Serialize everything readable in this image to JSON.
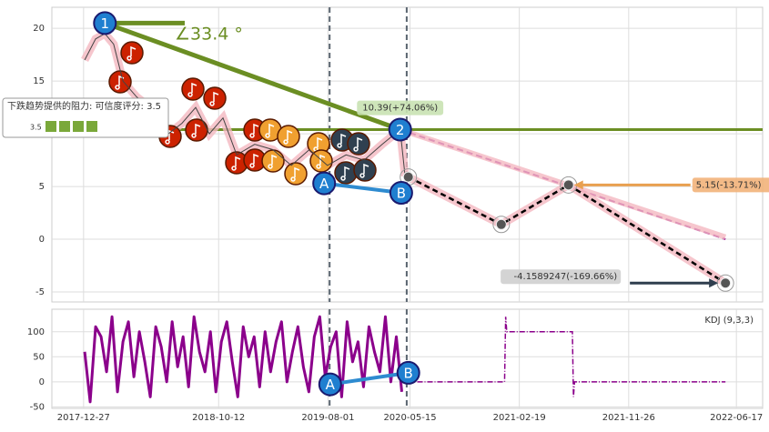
{
  "chart_data": [
    {
      "type": "line",
      "ylim": [
        -5.95,
        22
      ],
      "yticks": [
        -5,
        0,
        5,
        10,
        15,
        20
      ],
      "xlim": [
        0,
        1300
      ],
      "grid": true,
      "series": [
        {
          "color": "#444444",
          "x": [
            60,
            80,
            97,
            113,
            130,
            155,
            180,
            213,
            238,
            263,
            288,
            313,
            338,
            371,
            404,
            438,
            471,
            504,
            538,
            571,
            604,
            637,
            646
          ],
          "values": [
            17,
            19,
            19.5,
            18.5,
            15,
            13.5,
            12.5,
            10,
            11,
            12.5,
            10,
            11.5,
            8,
            9,
            8.5,
            7,
            8.5,
            7,
            8,
            7.5,
            9,
            10.4,
            6
          ]
        },
        {
          "color": "#000000",
          "x": [
            652,
            822,
            945,
            1232
          ],
          "values": [
            5.9,
            1.4,
            5.15,
            -4.1589247
          ]
        }
      ],
      "trend_lines": [
        {
          "color": "#6b8e23",
          "x": [
            97,
            637
          ],
          "values": [
            20.5,
            10.4
          ]
        },
        {
          "color": "#6b8e23",
          "x": [
            97,
            243
          ],
          "values": [
            20.5,
            20.5
          ]
        },
        {
          "color": "#6b8e23",
          "x": [
            0,
            1300
          ],
          "values": [
            10.4,
            10.4
          ]
        },
        {
          "color": "#8b008b",
          "x": [
            637,
            1232
          ],
          "values": [
            10.4,
            0
          ]
        },
        {
          "color": "#f4b8c0",
          "x": [
            637,
            1232
          ],
          "values": [
            10.4,
            0.2
          ]
        }
      ],
      "vlines": [
        508,
        649
      ],
      "markers": [
        {
          "label": "1",
          "x": 97,
          "y": 20.5
        },
        {
          "label": "2",
          "x": 637,
          "y": 10.4
        },
        {
          "label": "A",
          "x": 498,
          "y": 5.3
        },
        {
          "label": "B",
          "x": 639,
          "y": 4.4
        }
      ],
      "annotations": [
        {
          "text": "10.39(+74.06%)",
          "x": 637,
          "y": 10.39,
          "color": "#c9e2b3"
        },
        {
          "text": "5.15(-13.71%)",
          "x": 945,
          "y": 5.15,
          "color": "#f2b27a"
        },
        {
          "text": "-4.1589247(-169.66%)",
          "x": 1232,
          "y": -4.1589247,
          "color": "#cfcfcf"
        }
      ],
      "angle_label": "∠33.4 °",
      "tooltip": {
        "text": "下跌趋势提供的阻力: 可信度评分: 3.5",
        "score": 3.5
      }
    },
    {
      "type": "line",
      "label": "KDJ (9,3,3)",
      "ylim": [
        -53,
        145
      ],
      "yticks": [
        -50,
        0,
        50,
        100
      ],
      "xlim": [
        0,
        1300
      ],
      "grid": true,
      "xticks": [
        {
          "value": 58,
          "label": "2017-12-27"
        },
        {
          "value": 305,
          "label": "2018-10-12"
        },
        {
          "value": 505,
          "label": "2019-08-01"
        },
        {
          "value": 655,
          "label": "2020-05-15"
        },
        {
          "value": 855,
          "label": "2021-02-19"
        },
        {
          "value": 1055,
          "label": "2021-11-26"
        },
        {
          "value": 1252,
          "label": "2022-06-17"
        }
      ],
      "series": [
        {
          "color": "#8b008b",
          "x": [
            60,
            70,
            80,
            90,
            100,
            110,
            120,
            130,
            140,
            150,
            160,
            170,
            180,
            190,
            200,
            210,
            220,
            230,
            240,
            250,
            260,
            270,
            280,
            290,
            300,
            310,
            320,
            330,
            340,
            350,
            360,
            370,
            380,
            390,
            400,
            410,
            420,
            430,
            440,
            450,
            460,
            470,
            480,
            490,
            500,
            510,
            520,
            530,
            540,
            550,
            560,
            570,
            580,
            590,
            600,
            610,
            620,
            630,
            640
          ],
          "values": [
            60,
            -40,
            110,
            90,
            20,
            130,
            -20,
            80,
            120,
            10,
            100,
            40,
            -30,
            110,
            70,
            0,
            120,
            30,
            90,
            -10,
            130,
            60,
            20,
            100,
            -20,
            80,
            120,
            40,
            -30,
            110,
            50,
            90,
            -10,
            100,
            20,
            80,
            120,
            0,
            60,
            110,
            30,
            -20,
            90,
            130,
            10,
            70,
            100,
            -30,
            120,
            40,
            80,
            -10,
            110,
            60,
            20,
            130,
            0,
            90,
            -20
          ]
        },
        {
          "color": "#8b008b",
          "x": [
            650,
            828,
            830,
            832,
            952,
            954,
            956,
            1232
          ],
          "values": [
            0,
            0,
            130,
            100,
            100,
            -30,
            0,
            0
          ]
        }
      ],
      "markers": [
        {
          "label": "A",
          "x": 509,
          "y": -5
        },
        {
          "label": "B",
          "x": 652,
          "y": 18
        }
      ]
    }
  ]
}
